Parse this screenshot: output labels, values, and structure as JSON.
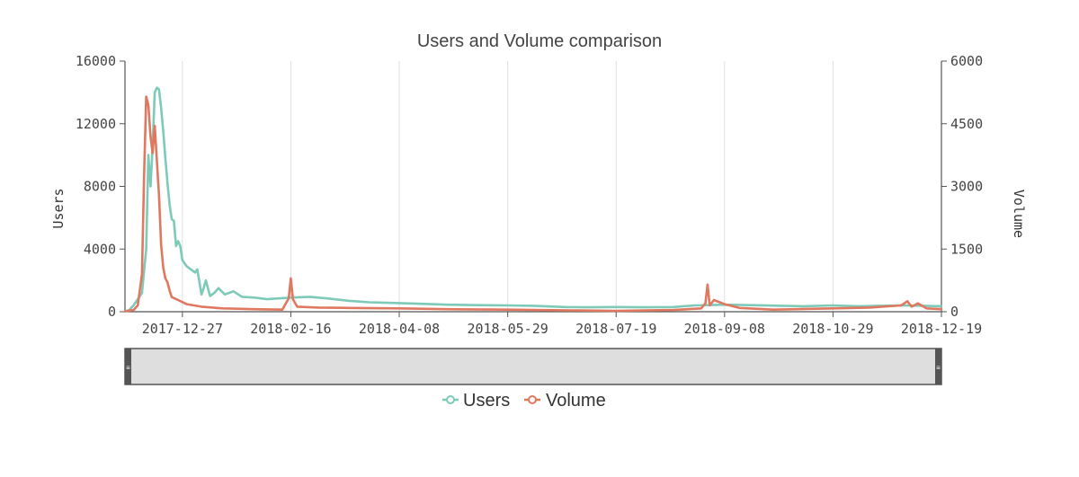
{
  "chart_data": {
    "type": "line",
    "title": "Users and Volume comparison",
    "xlabel": "",
    "ylabel_left": "Users",
    "ylabel_right": "Volume",
    "x_tick_labels": [
      "2017-12-27",
      "2018-02-16",
      "2018-04-08",
      "2018-05-29",
      "2018-07-19",
      "2018-09-08",
      "2018-10-29",
      "2018-12-19"
    ],
    "y_left_ticks": [
      "0",
      "4000",
      "8000",
      "12000",
      "16000"
    ],
    "y_right_ticks": [
      "0",
      "1500",
      "3000",
      "4500",
      "6000"
    ],
    "xlim": [
      "2017-11-30",
      "2018-12-19"
    ],
    "ylim_left": [
      0,
      16000
    ],
    "ylim_right": [
      0,
      6000
    ],
    "grid": "vertical",
    "legend_position": "bottom",
    "series": [
      {
        "name": "Users",
        "axis": "left",
        "color": "#7ecab8",
        "points": [
          [
            "2017-11-30",
            30
          ],
          [
            "2017-12-02",
            100
          ],
          [
            "2017-12-04",
            400
          ],
          [
            "2017-12-06",
            800
          ],
          [
            "2017-12-08",
            1200
          ],
          [
            "2017-12-10",
            4000
          ],
          [
            "2017-12-11",
            10000
          ],
          [
            "2017-12-12",
            8000
          ],
          [
            "2017-12-13",
            10500
          ],
          [
            "2017-12-14",
            14000
          ],
          [
            "2017-12-15",
            14300
          ],
          [
            "2017-12-16",
            14200
          ],
          [
            "2017-12-17",
            13000
          ],
          [
            "2017-12-18",
            11500
          ],
          [
            "2017-12-19",
            9800
          ],
          [
            "2017-12-20",
            8200
          ],
          [
            "2017-12-21",
            6800
          ],
          [
            "2017-12-22",
            5900
          ],
          [
            "2017-12-23",
            5800
          ],
          [
            "2017-12-24",
            4200
          ],
          [
            "2017-12-25",
            4500
          ],
          [
            "2017-12-26",
            4200
          ],
          [
            "2017-12-27",
            3300
          ],
          [
            "2017-12-29",
            2900
          ],
          [
            "2017-12-31",
            2700
          ],
          [
            "2018-01-02",
            2500
          ],
          [
            "2018-01-03",
            2700
          ],
          [
            "2018-01-05",
            1100
          ],
          [
            "2018-01-06",
            1500
          ],
          [
            "2018-01-07",
            2000
          ],
          [
            "2018-01-09",
            1000
          ],
          [
            "2018-01-11",
            1200
          ],
          [
            "2018-01-13",
            1500
          ],
          [
            "2018-01-16",
            1100
          ],
          [
            "2018-01-20",
            1300
          ],
          [
            "2018-01-24",
            950
          ],
          [
            "2018-01-30",
            900
          ],
          [
            "2018-02-05",
            800
          ],
          [
            "2018-02-10",
            850
          ],
          [
            "2018-02-16",
            900
          ],
          [
            "2018-02-25",
            950
          ],
          [
            "2018-03-05",
            850
          ],
          [
            "2018-03-15",
            700
          ],
          [
            "2018-03-25",
            600
          ],
          [
            "2018-04-08",
            550
          ],
          [
            "2018-04-20",
            500
          ],
          [
            "2018-05-01",
            450
          ],
          [
            "2018-05-15",
            420
          ],
          [
            "2018-05-29",
            400
          ],
          [
            "2018-06-10",
            380
          ],
          [
            "2018-06-25",
            300
          ],
          [
            "2018-07-05",
            280
          ],
          [
            "2018-07-19",
            300
          ],
          [
            "2018-08-01",
            280
          ],
          [
            "2018-08-15",
            300
          ],
          [
            "2018-08-25",
            400
          ],
          [
            "2018-09-08",
            450
          ],
          [
            "2018-09-20",
            420
          ],
          [
            "2018-10-05",
            380
          ],
          [
            "2018-10-15",
            350
          ],
          [
            "2018-10-29",
            400
          ],
          [
            "2018-11-10",
            350
          ],
          [
            "2018-11-20",
            380
          ],
          [
            "2018-11-30",
            400
          ],
          [
            "2018-12-10",
            380
          ],
          [
            "2018-12-19",
            350
          ]
        ]
      },
      {
        "name": "Volume",
        "axis": "right",
        "color": "#e07860",
        "points": [
          [
            "2017-11-30",
            10
          ],
          [
            "2017-12-04",
            40
          ],
          [
            "2017-12-06",
            150
          ],
          [
            "2017-12-08",
            900
          ],
          [
            "2017-12-09",
            3300
          ],
          [
            "2017-12-10",
            5150
          ],
          [
            "2017-12-11",
            4950
          ],
          [
            "2017-12-12",
            4200
          ],
          [
            "2017-12-13",
            3800
          ],
          [
            "2017-12-14",
            4450
          ],
          [
            "2017-12-15",
            3600
          ],
          [
            "2017-12-16",
            2800
          ],
          [
            "2017-12-17",
            1600
          ],
          [
            "2017-12-18",
            1050
          ],
          [
            "2017-12-19",
            800
          ],
          [
            "2017-12-20",
            700
          ],
          [
            "2017-12-21",
            500
          ],
          [
            "2017-12-22",
            350
          ],
          [
            "2017-12-25",
            280
          ],
          [
            "2017-12-29",
            180
          ],
          [
            "2018-01-05",
            120
          ],
          [
            "2018-01-15",
            80
          ],
          [
            "2018-01-30",
            60
          ],
          [
            "2018-02-12",
            50
          ],
          [
            "2018-02-15",
            320
          ],
          [
            "2018-02-16",
            800
          ],
          [
            "2018-02-17",
            300
          ],
          [
            "2018-02-19",
            120
          ],
          [
            "2018-03-01",
            100
          ],
          [
            "2018-03-15",
            90
          ],
          [
            "2018-04-08",
            80
          ],
          [
            "2018-05-01",
            60
          ],
          [
            "2018-05-29",
            50
          ],
          [
            "2018-07-01",
            30
          ],
          [
            "2018-07-19",
            20
          ],
          [
            "2018-08-15",
            40
          ],
          [
            "2018-08-28",
            80
          ],
          [
            "2018-08-30",
            200
          ],
          [
            "2018-08-31",
            650
          ],
          [
            "2018-09-01",
            150
          ],
          [
            "2018-09-03",
            280
          ],
          [
            "2018-09-08",
            180
          ],
          [
            "2018-09-15",
            90
          ],
          [
            "2018-10-01",
            50
          ],
          [
            "2018-10-29",
            80
          ],
          [
            "2018-11-15",
            100
          ],
          [
            "2018-11-30",
            150
          ],
          [
            "2018-12-03",
            250
          ],
          [
            "2018-12-05",
            120
          ],
          [
            "2018-12-08",
            200
          ],
          [
            "2018-12-12",
            80
          ],
          [
            "2018-12-19",
            60
          ]
        ]
      }
    ]
  },
  "colors": {
    "users": "#7ecab8",
    "volume": "#e07860",
    "axis": "#555555",
    "grid": "#e0e0e0",
    "navigator_fill": "#dedede",
    "navigator_border": "#555555"
  }
}
